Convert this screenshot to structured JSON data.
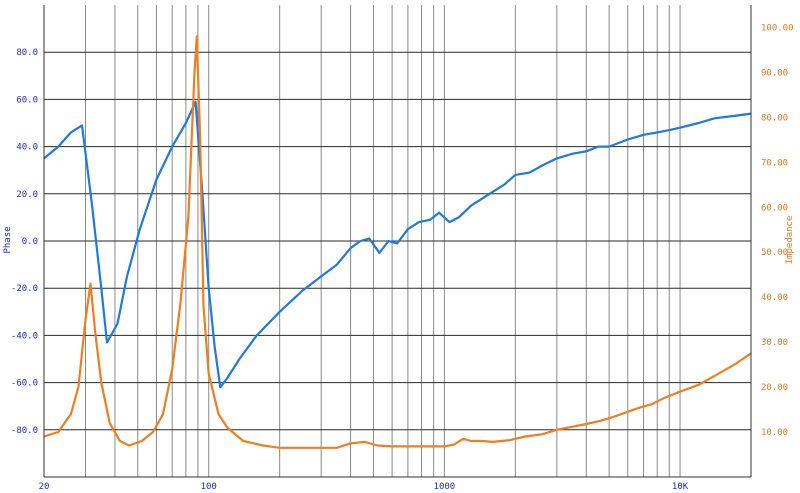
{
  "chart_data": {
    "type": "line",
    "xscale": "log",
    "xlim": [
      20,
      20000
    ],
    "x_tick_labels": [
      {
        "value": 20,
        "label": "20"
      },
      {
        "value": 100,
        "label": "100"
      },
      {
        "value": 1000,
        "label": "1000"
      },
      {
        "value": 10000,
        "label": "10K"
      }
    ],
    "x_gridlines": [
      30,
      40,
      50,
      60,
      70,
      80,
      90,
      100,
      200,
      300,
      400,
      500,
      600,
      700,
      800,
      900,
      1000,
      2000,
      3000,
      4000,
      5000,
      6000,
      7000,
      8000,
      9000,
      10000
    ],
    "y_left": {
      "label": "Phase",
      "lim": [
        -100,
        100
      ],
      "ticks": [
        {
          "value": 80,
          "label": "80.0"
        },
        {
          "value": 60,
          "label": "60.0"
        },
        {
          "value": 40,
          "label": "40.0"
        },
        {
          "value": 20,
          "label": "20.0"
        },
        {
          "value": 0,
          "label": "0.0"
        },
        {
          "value": -20,
          "label": "-20.0"
        },
        {
          "value": -40,
          "label": "-40.0"
        },
        {
          "value": -60,
          "label": "-60.0"
        },
        {
          "value": -80,
          "label": "-80.0"
        }
      ]
    },
    "y_right": {
      "label": "Impedance",
      "lim": [
        0,
        105
      ],
      "ticks": [
        {
          "value": 100,
          "label": "100.00"
        },
        {
          "value": 90,
          "label": "90.00"
        },
        {
          "value": 80,
          "label": "80.00"
        },
        {
          "value": 70,
          "label": "70.00"
        },
        {
          "value": 60,
          "label": "60.00"
        },
        {
          "value": 50,
          "label": "50.00"
        },
        {
          "value": 40,
          "label": "40.00"
        },
        {
          "value": 30,
          "label": "30.00"
        },
        {
          "value": 20,
          "label": "20.00"
        },
        {
          "value": 10,
          "label": "10.00"
        }
      ]
    },
    "grid": true,
    "series": [
      {
        "color": "#1f7ae0",
        "axis": "left",
        "points": [
          [
            20,
            35
          ],
          [
            23,
            40
          ],
          [
            26,
            46
          ],
          [
            29,
            49
          ],
          [
            32,
            15
          ],
          [
            35,
            -20
          ],
          [
            37,
            -43
          ],
          [
            41,
            -35
          ],
          [
            45,
            -15
          ],
          [
            51,
            5
          ],
          [
            60,
            26
          ],
          [
            70,
            40
          ],
          [
            80,
            50
          ],
          [
            88,
            59
          ],
          [
            94,
            20
          ],
          [
            100,
            -20
          ],
          [
            106,
            -45
          ],
          [
            112,
            -62
          ],
          [
            120,
            -58
          ],
          [
            135,
            -50
          ],
          [
            160,
            -40
          ],
          [
            200,
            -30
          ],
          [
            250,
            -21
          ],
          [
            300,
            -15
          ],
          [
            350,
            -10
          ],
          [
            400,
            -3
          ],
          [
            440,
            0
          ],
          [
            480,
            1
          ],
          [
            530,
            -5
          ],
          [
            580,
            0
          ],
          [
            630,
            -1
          ],
          [
            700,
            5
          ],
          [
            780,
            8
          ],
          [
            870,
            9
          ],
          [
            950,
            12
          ],
          [
            1050,
            8
          ],
          [
            1150,
            10
          ],
          [
            1300,
            15
          ],
          [
            1500,
            19
          ],
          [
            1800,
            24
          ],
          [
            2000,
            28
          ],
          [
            2300,
            29
          ],
          [
            2600,
            32
          ],
          [
            3000,
            35
          ],
          [
            3500,
            37
          ],
          [
            4000,
            38
          ],
          [
            4500,
            40
          ],
          [
            5000,
            40
          ],
          [
            6000,
            43
          ],
          [
            7000,
            45
          ],
          [
            8000,
            46
          ],
          [
            9000,
            47
          ],
          [
            10000,
            48
          ],
          [
            12000,
            50
          ],
          [
            14000,
            52
          ],
          [
            17000,
            53
          ],
          [
            20000,
            54
          ]
        ]
      },
      {
        "color": "#f07e20",
        "axis": "right",
        "points": [
          [
            20,
            9
          ],
          [
            23,
            10
          ],
          [
            26,
            14
          ],
          [
            28,
            20
          ],
          [
            30,
            35
          ],
          [
            31.5,
            43
          ],
          [
            33,
            32
          ],
          [
            35,
            21
          ],
          [
            38,
            12
          ],
          [
            42,
            8
          ],
          [
            46,
            7
          ],
          [
            52,
            8
          ],
          [
            58,
            10
          ],
          [
            64,
            14
          ],
          [
            70,
            24
          ],
          [
            76,
            39
          ],
          [
            82,
            58
          ],
          [
            87,
            90
          ],
          [
            89,
            98
          ],
          [
            92,
            75
          ],
          [
            95,
            38
          ],
          [
            100,
            23
          ],
          [
            110,
            14
          ],
          [
            120,
            11
          ],
          [
            140,
            8
          ],
          [
            170,
            7
          ],
          [
            200,
            6.5
          ],
          [
            250,
            6.5
          ],
          [
            300,
            6.5
          ],
          [
            350,
            6.5
          ],
          [
            400,
            7.5
          ],
          [
            460,
            7.8
          ],
          [
            520,
            7
          ],
          [
            600,
            6.8
          ],
          [
            700,
            6.8
          ],
          [
            800,
            6.8
          ],
          [
            900,
            6.8
          ],
          [
            1000,
            6.8
          ],
          [
            1100,
            7.2
          ],
          [
            1200,
            8.5
          ],
          [
            1300,
            8
          ],
          [
            1450,
            8
          ],
          [
            1600,
            7.8
          ],
          [
            1900,
            8.2
          ],
          [
            2200,
            9
          ],
          [
            2600,
            9.5
          ],
          [
            3000,
            10.5
          ],
          [
            3500,
            11.2
          ],
          [
            4000,
            11.8
          ],
          [
            4600,
            12.5
          ],
          [
            5300,
            13.5
          ],
          [
            6000,
            14.5
          ],
          [
            6800,
            15.5
          ],
          [
            7600,
            16.2
          ],
          [
            8500,
            17.5
          ],
          [
            10000,
            19
          ],
          [
            12000,
            20.5
          ],
          [
            14000,
            22.5
          ],
          [
            17000,
            25
          ],
          [
            20000,
            27.5
          ]
        ]
      }
    ]
  }
}
